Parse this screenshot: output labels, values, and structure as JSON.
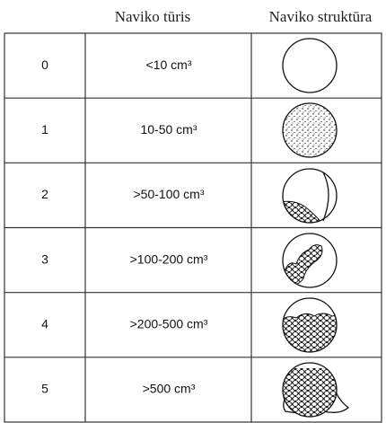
{
  "table": {
    "header": [
      "Naviko tūris",
      "Naviko struktūra"
    ],
    "rows": [
      [
        "0",
        "<10 cm³"
      ],
      [
        "1",
        "10-50 cm³"
      ],
      [
        "2",
        ">50-100 cm³"
      ],
      [
        "3",
        ">100-200 cm³"
      ],
      [
        "4",
        ">200-500 cm³"
      ],
      [
        "5",
        ">500 cm³"
      ]
    ]
  }
}
